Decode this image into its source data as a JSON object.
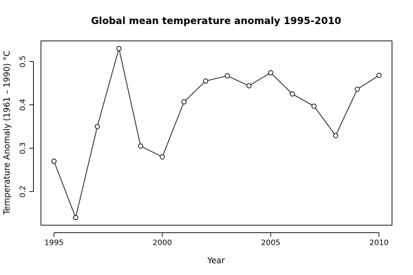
{
  "chart_data": {
    "type": "line",
    "title": "Global mean temperature anomaly 1995-2010",
    "xlabel": "Year",
    "ylabel": "Temperature Anomaly (1961 – 1990) °C",
    "x": [
      1995,
      1996,
      1997,
      1998,
      1999,
      2000,
      2001,
      2002,
      2003,
      2004,
      2005,
      2006,
      2007,
      2008,
      2009,
      2010
    ],
    "series": [
      {
        "values": [
          0.27,
          0.14,
          0.35,
          0.53,
          0.305,
          0.28,
          0.407,
          0.455,
          0.467,
          0.444,
          0.474,
          0.425,
          0.397,
          0.329,
          0.436,
          0.468
        ]
      }
    ],
    "xticks": [
      "1995",
      "2000",
      "2005",
      "2010"
    ],
    "yticks": [
      "0.2",
      "0.3",
      "0.4",
      "0.5"
    ],
    "xlim": [
      1994.4,
      2010.6
    ],
    "ylim": [
      0.1225,
      0.5475
    ],
    "grid": false,
    "marker": "open-circle",
    "line_color": "#000000"
  }
}
